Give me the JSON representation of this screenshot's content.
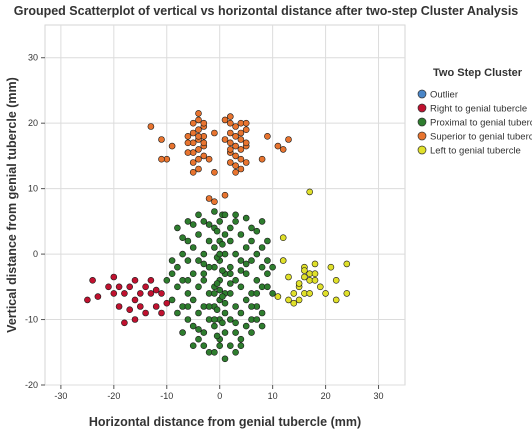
{
  "chart_data": {
    "type": "scatter",
    "title": "Grouped Scatterplot of vertical vs horizontal distance after two-step Cluster Analysis",
    "xlabel": "Horizontal distance from genial tubercle (mm)",
    "ylabel": "Vertical distance from genial tubercle (mm)",
    "xlim": [
      -33,
      35
    ],
    "ylim": [
      -20,
      35
    ],
    "x_ticks": [
      -30,
      -20,
      -10,
      0,
      10,
      20,
      30
    ],
    "y_ticks": [
      -20,
      -10,
      0,
      10,
      20,
      30
    ],
    "grid": true,
    "legend": {
      "title": "Two Step Cluster",
      "position": "right"
    },
    "series": [
      {
        "name": "Outlier",
        "color": "#4a86c8",
        "points": []
      },
      {
        "name": "Right to genial tubercle",
        "color": "#c0112f",
        "points": [
          [
            -24,
            -4
          ],
          [
            -25,
            -7
          ],
          [
            -23,
            -6.5
          ],
          [
            -20,
            -3.5
          ],
          [
            -19,
            -5
          ],
          [
            -18,
            -6
          ],
          [
            -19,
            -8
          ],
          [
            -18,
            -10.5
          ],
          [
            -17,
            -5
          ],
          [
            -16,
            -4
          ],
          [
            -16,
            -7
          ],
          [
            -15,
            -6
          ],
          [
            -15,
            -8
          ],
          [
            -14,
            -5
          ],
          [
            -14,
            -9
          ],
          [
            -13,
            -6
          ],
          [
            -13,
            -4
          ],
          [
            -12,
            -8
          ],
          [
            -11,
            -9
          ],
          [
            -10,
            -7.5
          ],
          [
            -11,
            -6
          ],
          [
            -17,
            -8.5
          ],
          [
            -20,
            -6
          ],
          [
            -21,
            -5
          ],
          [
            -12,
            -5.5
          ],
          [
            -16,
            -10
          ]
        ]
      },
      {
        "name": "Proximal to genial tubercle",
        "color": "#2e7d2e",
        "points": [
          [
            0,
            5
          ],
          [
            -1,
            4
          ],
          [
            1,
            3
          ],
          [
            0,
            2
          ],
          [
            -1,
            1
          ],
          [
            1,
            0
          ],
          [
            0,
            -1
          ],
          [
            -1,
            -2
          ],
          [
            1,
            -3
          ],
          [
            0,
            -4
          ],
          [
            -1,
            -5
          ],
          [
            1,
            -6
          ],
          [
            0,
            -7
          ],
          [
            -1,
            -8
          ],
          [
            1,
            -9
          ],
          [
            0,
            -10
          ],
          [
            -1,
            -11
          ],
          [
            1,
            -12
          ],
          [
            0,
            -13
          ],
          [
            0,
            -14
          ],
          [
            0.5,
            6
          ],
          [
            -0.5,
            3.5
          ],
          [
            0.5,
            1.5
          ],
          [
            -0.5,
            -0.5
          ],
          [
            0.5,
            -2.5
          ],
          [
            -0.5,
            -4.5
          ],
          [
            0.5,
            -6.5
          ],
          [
            -0.5,
            -8.5
          ],
          [
            0.5,
            -10.5
          ],
          [
            -0.5,
            -12.5
          ],
          [
            -3,
            5
          ],
          [
            -4,
            3
          ],
          [
            -2,
            2
          ],
          [
            -5,
            1
          ],
          [
            -3,
            0
          ],
          [
            -4,
            -1
          ],
          [
            -2,
            -2
          ],
          [
            -5,
            -3
          ],
          [
            -3,
            -4
          ],
          [
            -4,
            -5
          ],
          [
            -2,
            -6
          ],
          [
            -5,
            -7
          ],
          [
            -3,
            -8
          ],
          [
            -4,
            -9
          ],
          [
            -2,
            -10
          ],
          [
            -5,
            -11
          ],
          [
            -3,
            -12
          ],
          [
            -4,
            -13
          ],
          [
            -6,
            -1
          ],
          [
            -7,
            0
          ],
          [
            -6,
            2
          ],
          [
            -8,
            -2
          ],
          [
            -7,
            -4
          ],
          [
            -6,
            -6
          ],
          [
            -8,
            -5
          ],
          [
            -9,
            -3
          ],
          [
            -7,
            -8
          ],
          [
            -6,
            -10
          ],
          [
            -8,
            -9
          ],
          [
            -5,
            -14
          ],
          [
            -3,
            -14
          ],
          [
            -9,
            -1
          ],
          [
            -10,
            -4
          ],
          [
            -7,
            2.5
          ],
          [
            -9,
            -7
          ],
          [
            3,
            5
          ],
          [
            4,
            3
          ],
          [
            2,
            2
          ],
          [
            5,
            1
          ],
          [
            3,
            0
          ],
          [
            4,
            -1
          ],
          [
            2,
            -2
          ],
          [
            5,
            -3
          ],
          [
            3,
            -4
          ],
          [
            4,
            -5
          ],
          [
            2,
            -6
          ],
          [
            5,
            -7
          ],
          [
            3,
            -8
          ],
          [
            4,
            -9
          ],
          [
            2,
            -10
          ],
          [
            5,
            -11
          ],
          [
            3,
            -12
          ],
          [
            4,
            -13
          ],
          [
            6,
            -1
          ],
          [
            7,
            0
          ],
          [
            6,
            2
          ],
          [
            8,
            -2
          ],
          [
            7,
            -4
          ],
          [
            6,
            -6
          ],
          [
            8,
            -5
          ],
          [
            9,
            -3
          ],
          [
            7,
            -8
          ],
          [
            6,
            -10
          ],
          [
            8,
            -9
          ],
          [
            9,
            -1
          ],
          [
            2,
            -14
          ],
          [
            6,
            -12
          ],
          [
            9,
            -5
          ],
          [
            10,
            -6
          ],
          [
            8,
            1
          ],
          [
            10,
            -2
          ],
          [
            1,
            -16
          ],
          [
            3,
            -15
          ],
          [
            -2,
            -15
          ],
          [
            -6,
            -4
          ],
          [
            5,
            -1.5
          ],
          [
            7,
            -6
          ],
          [
            -1,
            -6
          ],
          [
            0,
            0
          ],
          [
            2,
            4
          ],
          [
            -2,
            4.5
          ],
          [
            1,
            6
          ],
          [
            -1,
            6.5
          ],
          [
            3,
            6
          ],
          [
            -4,
            6
          ],
          [
            6,
            4
          ],
          [
            5,
            5.5
          ],
          [
            -6,
            5
          ],
          [
            -5,
            4.5
          ],
          [
            7,
            3.5
          ],
          [
            8,
            5
          ],
          [
            9,
            2
          ],
          [
            -8,
            4
          ],
          [
            -1,
            -15
          ],
          [
            4,
            -14
          ],
          [
            -3,
            -1.5
          ],
          [
            2,
            -4.5
          ],
          [
            -2,
            -8
          ],
          [
            3,
            -10.5
          ],
          [
            -4,
            -11.5
          ],
          [
            -1,
            -10
          ],
          [
            1,
            -7.5
          ],
          [
            0,
            -5.5
          ],
          [
            2,
            -3
          ],
          [
            -3,
            -3
          ],
          [
            4,
            -2.5
          ],
          [
            6,
            -8
          ],
          [
            -6,
            -8
          ],
          [
            -7,
            -12
          ],
          [
            7,
            -10
          ],
          [
            8,
            -11
          ]
        ]
      },
      {
        "name": "Superior to genial tubercle",
        "color": "#e8742f",
        "points": [
          [
            -4,
            21.5
          ],
          [
            -4,
            20.5
          ],
          [
            -5,
            20
          ],
          [
            -3,
            19.5
          ],
          [
            -4,
            19
          ],
          [
            -5,
            18.5
          ],
          [
            -3,
            18
          ],
          [
            -4,
            17.5
          ],
          [
            -5,
            17
          ],
          [
            -3,
            16.5
          ],
          [
            -4,
            16
          ],
          [
            -5,
            15.5
          ],
          [
            -3,
            15
          ],
          [
            -4,
            14.5
          ],
          [
            -5,
            14
          ],
          [
            -4,
            13
          ],
          [
            -6,
            15.5
          ],
          [
            -6,
            18
          ],
          [
            -5,
            12.5
          ],
          [
            -3,
            20
          ],
          [
            -6,
            17
          ],
          [
            -3,
            17
          ],
          [
            -4,
            18
          ],
          [
            2,
            21
          ],
          [
            2,
            20
          ],
          [
            3,
            19.5
          ],
          [
            4,
            20
          ],
          [
            2,
            18.5
          ],
          [
            3,
            18
          ],
          [
            4,
            17.5
          ],
          [
            2,
            17
          ],
          [
            3,
            16.5
          ],
          [
            4,
            16
          ],
          [
            2,
            15.5
          ],
          [
            3,
            15
          ],
          [
            4,
            14.5
          ],
          [
            2,
            14
          ],
          [
            3,
            13.5
          ],
          [
            4,
            13
          ],
          [
            5,
            19
          ],
          [
            5,
            20
          ],
          [
            5,
            16.5
          ],
          [
            5,
            14
          ],
          [
            2,
            16
          ],
          [
            3,
            12.5
          ],
          [
            4,
            18.5
          ],
          [
            1,
            20.5
          ],
          [
            1,
            17.5
          ],
          [
            5,
            17
          ],
          [
            -1,
            18.5
          ],
          [
            -2,
            14.5
          ],
          [
            -10,
            14.5
          ],
          [
            -9,
            16.5
          ],
          [
            -11,
            17.5
          ],
          [
            -13,
            19.5
          ],
          [
            -11,
            14.5
          ],
          [
            -1,
            12.5
          ],
          [
            -1,
            8
          ],
          [
            1,
            9
          ],
          [
            -2,
            8.5
          ],
          [
            11,
            16.5
          ],
          [
            12,
            16
          ],
          [
            13,
            17.5
          ],
          [
            8,
            14.5
          ],
          [
            9,
            18
          ]
        ]
      },
      {
        "name": "Left to genial tubercle",
        "color": "#e0e02a",
        "points": [
          [
            12,
            2.5
          ],
          [
            12,
            -1
          ],
          [
            13,
            -3.5
          ],
          [
            11,
            -6.5
          ],
          [
            13,
            -7
          ],
          [
            14,
            -6
          ],
          [
            15,
            -5
          ],
          [
            15,
            -7
          ],
          [
            16,
            -6
          ],
          [
            17,
            -4
          ],
          [
            17,
            -3
          ],
          [
            16,
            -2
          ],
          [
            18,
            -3
          ],
          [
            18,
            -4
          ],
          [
            19,
            -5
          ],
          [
            16,
            -3.5
          ],
          [
            15,
            -4.5
          ],
          [
            17,
            -6
          ],
          [
            14,
            -7.5
          ],
          [
            20,
            -6
          ],
          [
            21,
            -2
          ],
          [
            22,
            -4
          ],
          [
            22,
            -7
          ],
          [
            24,
            -1.5
          ],
          [
            24,
            -6
          ],
          [
            17,
            9.5
          ],
          [
            16,
            -2.5
          ],
          [
            18,
            -1.5
          ]
        ]
      }
    ]
  }
}
